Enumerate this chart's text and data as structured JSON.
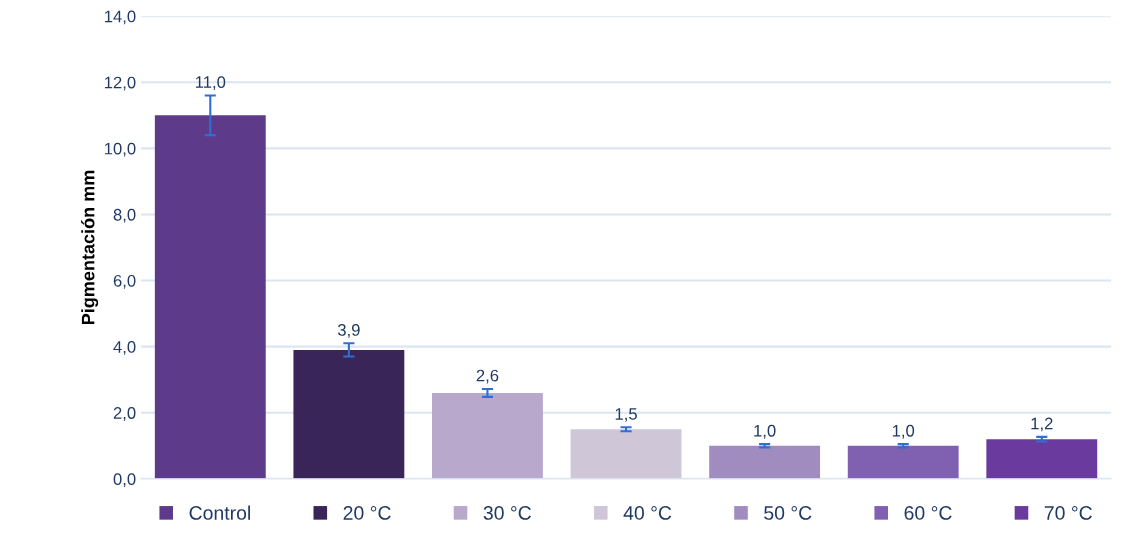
{
  "chart_data": {
    "type": "bar",
    "ylabel": "Pigmentación mm",
    "categories": [
      null,
      null,
      null,
      null,
      null,
      null,
      null
    ],
    "series": [
      {
        "name": "Control",
        "color": "#5e3a8a",
        "values": [
          11.0,
          null,
          null,
          null,
          null,
          null,
          null
        ],
        "errors": [
          0.6,
          null,
          null,
          null,
          null,
          null,
          null
        ],
        "value_labels": [
          "11,0",
          null,
          null,
          null,
          null,
          null,
          null
        ]
      },
      {
        "name": "20 °C",
        "color": "#3a2558",
        "values": [
          null,
          3.9,
          null,
          null,
          null,
          null,
          null
        ],
        "errors": [
          null,
          0.2,
          null,
          null,
          null,
          null,
          null
        ],
        "value_labels": [
          null,
          "3,9",
          null,
          null,
          null,
          null,
          null
        ]
      },
      {
        "name": "30 °C",
        "color": "#b8a8cc",
        "values": [
          null,
          null,
          2.6,
          null,
          null,
          null,
          null
        ],
        "errors": [
          null,
          null,
          0.12,
          null,
          null,
          null,
          null
        ],
        "value_labels": [
          null,
          null,
          "2,6",
          null,
          null,
          null,
          null
        ]
      },
      {
        "name": "40 °C",
        "color": "#cfc6d8",
        "values": [
          null,
          null,
          null,
          1.5,
          null,
          null,
          null
        ],
        "errors": [
          null,
          null,
          null,
          0.06,
          null,
          null,
          null
        ],
        "value_labels": [
          null,
          null,
          null,
          "1,5",
          null,
          null,
          null
        ]
      },
      {
        "name": "50 °C",
        "color": "#a08cbe",
        "values": [
          null,
          null,
          null,
          null,
          1.0,
          null,
          null
        ],
        "errors": [
          null,
          null,
          null,
          null,
          0.05,
          null,
          null
        ],
        "value_labels": [
          null,
          null,
          null,
          null,
          "1,0",
          null,
          null
        ]
      },
      {
        "name": "60 °C",
        "color": "#8060b0",
        "values": [
          null,
          null,
          null,
          null,
          null,
          1.0,
          null
        ],
        "errors": [
          null,
          null,
          null,
          null,
          null,
          0.05,
          null
        ],
        "value_labels": [
          null,
          null,
          null,
          null,
          null,
          "1,0",
          null
        ]
      },
      {
        "name": "70 °C",
        "color": "#6a3a9e",
        "values": [
          null,
          null,
          null,
          null,
          null,
          null,
          1.2
        ],
        "errors": [
          null,
          null,
          null,
          null,
          null,
          null,
          0.07
        ],
        "value_labels": [
          null,
          null,
          null,
          null,
          null,
          null,
          "1,2"
        ]
      }
    ],
    "ylim": [
      0,
      14
    ],
    "yticks": [
      {
        "value": 0,
        "label": "0,0"
      },
      {
        "value": 2,
        "label": "2,0"
      },
      {
        "value": 4,
        "label": "4,0"
      },
      {
        "value": 6,
        "label": "6,0"
      },
      {
        "value": 8,
        "label": "8,0"
      },
      {
        "value": 10,
        "label": "10,0"
      },
      {
        "value": 12,
        "label": "12,0"
      },
      {
        "value": 14,
        "label": "14,0"
      }
    ],
    "grid": "y",
    "legend": "bottom",
    "tick_labels": "y"
  }
}
